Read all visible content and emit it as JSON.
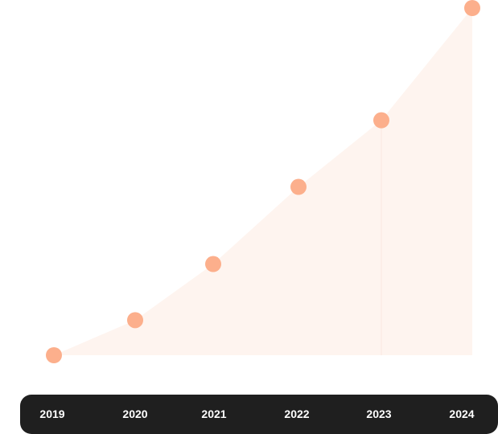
{
  "chart_data": {
    "type": "area",
    "categories": [
      "2019",
      "2020",
      "2021",
      "2022",
      "2023",
      "2024"
    ],
    "series": [
      {
        "values": [
          0,
          10,
          26,
          48,
          67,
          99
        ]
      }
    ],
    "ylim": [
      0,
      100
    ],
    "grid": false,
    "title": "",
    "xlabel": "",
    "ylabel": "",
    "colors": {
      "marker": "#fcaf8c",
      "fill": "#fef4ef",
      "axis_band": "#1f1f1f",
      "label": "#ffffff"
    }
  }
}
